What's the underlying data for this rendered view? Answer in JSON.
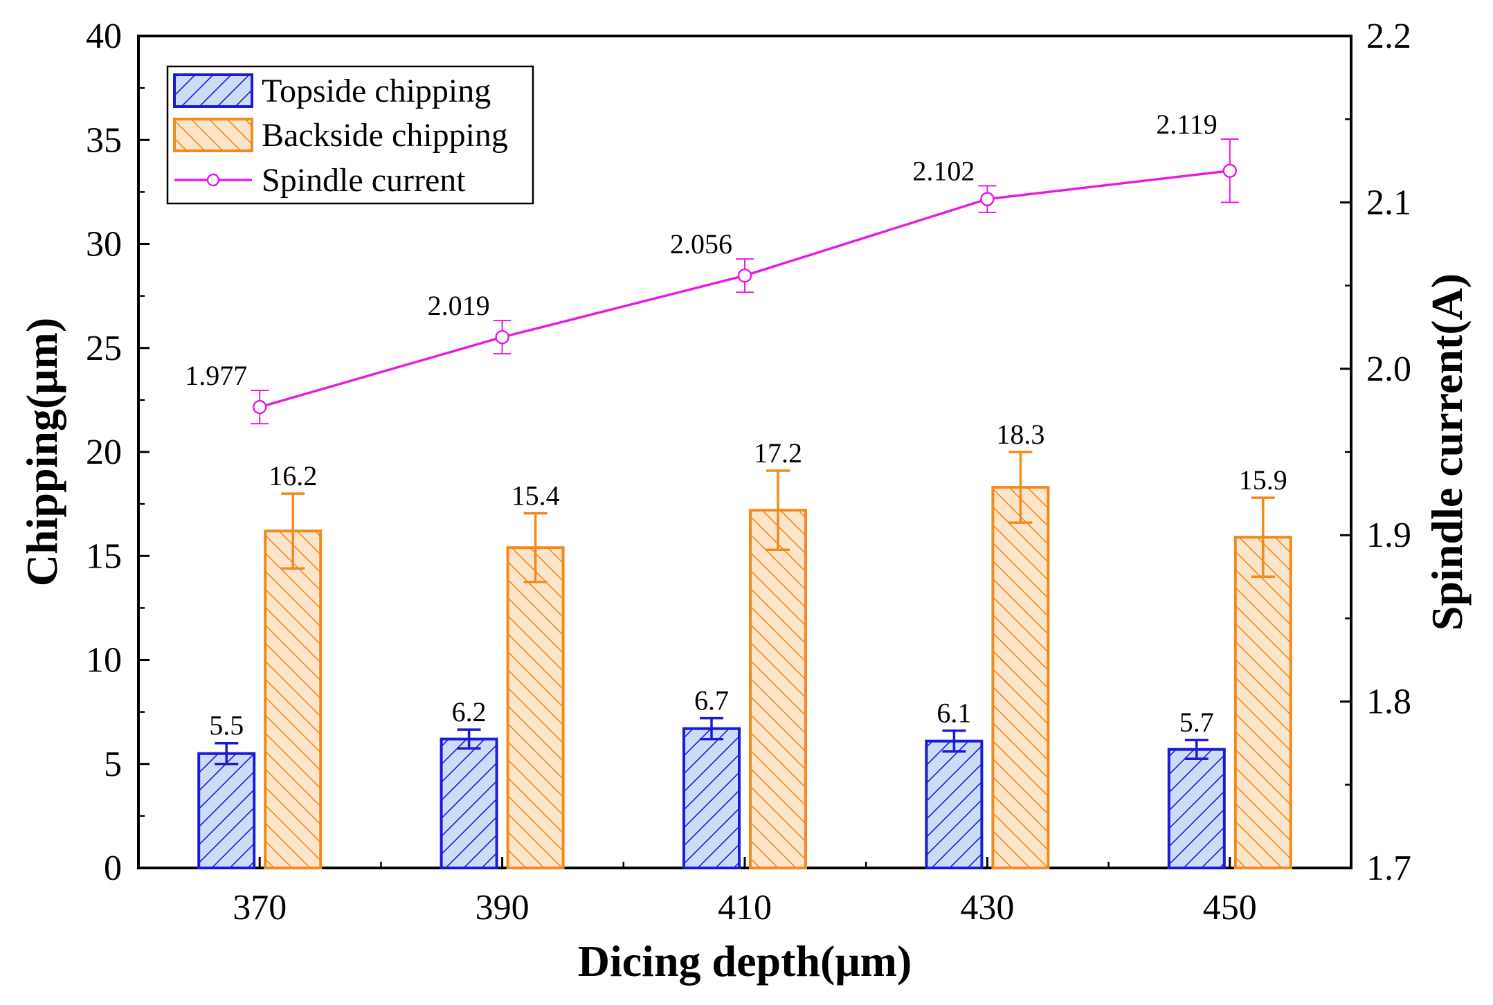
{
  "chart_data": {
    "type": "bar",
    "categories": [
      "370",
      "390",
      "410",
      "430",
      "450"
    ],
    "xlabel": "Dicing depth(μm)",
    "ylabel": "Chipping(μm)",
    "y2label": "Spindle current(A)",
    "ylim": [
      0,
      40
    ],
    "y2lim": [
      1.7,
      2.2
    ],
    "yticks": [
      "0",
      "5",
      "10",
      "15",
      "20",
      "25",
      "30",
      "35",
      "40"
    ],
    "y2ticks": [
      "1.7",
      "1.8",
      "1.9",
      "2.0",
      "2.1",
      "2.2"
    ],
    "legend_position": "top-left",
    "series": [
      {
        "name": "Topside chipping",
        "kind": "bar",
        "axis": "left",
        "values": [
          5.5,
          6.2,
          6.7,
          6.1,
          5.7
        ],
        "labels": [
          "5.5",
          "6.2",
          "6.7",
          "6.1",
          "5.7"
        ],
        "errors": [
          0.5,
          0.45,
          0.5,
          0.5,
          0.45
        ],
        "color": "#1a1adb",
        "fill": "#cddcf5"
      },
      {
        "name": "Backside chipping",
        "kind": "bar",
        "axis": "left",
        "values": [
          16.2,
          15.4,
          17.2,
          18.3,
          15.9
        ],
        "labels": [
          "16.2",
          "15.4",
          "17.2",
          "18.3",
          "15.9"
        ],
        "errors": [
          1.8,
          1.65,
          1.9,
          1.7,
          1.9
        ],
        "color": "#f28a1c",
        "fill": "#fde5cc"
      },
      {
        "name": "Spindle current",
        "kind": "line",
        "axis": "right",
        "values": [
          1.977,
          2.019,
          2.056,
          2.102,
          2.119
        ],
        "labels": [
          "1.977",
          "2.019",
          "2.056",
          "2.102",
          "2.119"
        ],
        "errors": [
          0.01,
          0.01,
          0.01,
          0.008,
          0.019
        ],
        "color": "#e81ce0"
      }
    ]
  }
}
